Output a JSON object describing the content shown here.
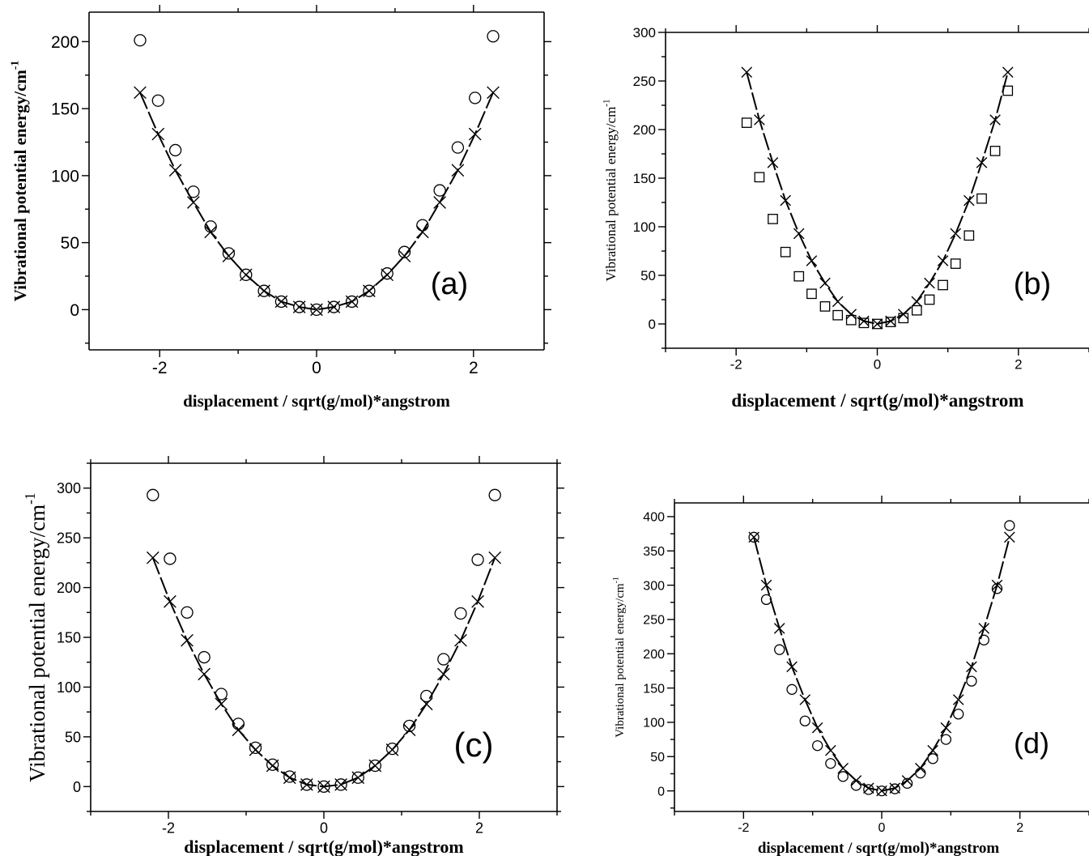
{
  "chart_data": [
    {
      "type": "scatter",
      "panel_label": "(a)",
      "xlabel": "displacement / sqrt(g/mol)*angstrom",
      "ylabel": "Vibrational potential energy/cm",
      "ylabel_sup": "-1",
      "xlim": [
        -2.9,
        2.9
      ],
      "ylim": [
        -30,
        222
      ],
      "xticks": [
        -2,
        0,
        2
      ],
      "yticks": [
        0,
        50,
        100,
        150,
        200
      ],
      "series": [
        {
          "marker": "circle",
          "x": [
            -2.25,
            -2.02,
            -1.8,
            -1.57,
            -1.35,
            -1.12,
            -0.9,
            -0.67,
            -0.45,
            -0.22,
            0,
            0.22,
            0.45,
            0.67,
            0.9,
            1.12,
            1.35,
            1.57,
            1.8,
            2.02,
            2.25
          ],
          "y": [
            201,
            156,
            119,
            88,
            62,
            42,
            26,
            14,
            6,
            2,
            0,
            2,
            6,
            14,
            27,
            43,
            63,
            89,
            121,
            158,
            204
          ]
        },
        {
          "marker": "cross",
          "line": true,
          "x": [
            -2.25,
            -2.02,
            -1.8,
            -1.57,
            -1.35,
            -1.12,
            -0.9,
            -0.67,
            -0.45,
            -0.22,
            0,
            0.22,
            0.45,
            0.67,
            0.9,
            1.12,
            1.35,
            1.57,
            1.8,
            2.02,
            2.25
          ],
          "y": [
            162,
            131,
            104,
            80,
            58,
            40,
            26,
            14,
            6,
            2,
            0,
            2,
            6,
            14,
            26,
            40,
            58,
            80,
            104,
            131,
            162
          ]
        }
      ]
    },
    {
      "type": "scatter",
      "panel_label": "(b)",
      "xlabel": "displacement / sqrt(g/mol)*angstrom",
      "ylabel": "Vibrational potential energy/cm",
      "ylabel_sup": "-1",
      "xlim": [
        -3,
        3
      ],
      "ylim": [
        -25,
        300
      ],
      "xticks": [
        -2,
        0,
        2
      ],
      "yticks": [
        0,
        50,
        100,
        150,
        200,
        250,
        300
      ],
      "series": [
        {
          "marker": "square",
          "x": [
            -1.85,
            -1.67,
            -1.48,
            -1.3,
            -1.11,
            -0.93,
            -0.74,
            -0.56,
            -0.37,
            -0.19,
            0,
            0.19,
            0.37,
            0.56,
            0.74,
            0.93,
            1.11,
            1.3,
            1.48,
            1.67,
            1.85
          ],
          "y": [
            207,
            151,
            108,
            74,
            49,
            31,
            18,
            9,
            4,
            1,
            0,
            2,
            6,
            14,
            25,
            40,
            62,
            91,
            129,
            178,
            240
          ]
        },
        {
          "marker": "cross",
          "line": true,
          "x": [
            -1.85,
            -1.67,
            -1.48,
            -1.3,
            -1.11,
            -0.93,
            -0.74,
            -0.56,
            -0.37,
            -0.19,
            0,
            0.19,
            0.37,
            0.56,
            0.74,
            0.93,
            1.11,
            1.3,
            1.48,
            1.67,
            1.85
          ],
          "y": [
            259,
            210,
            166,
            127,
            93,
            65,
            42,
            23,
            10,
            3,
            0,
            3,
            10,
            23,
            42,
            65,
            93,
            127,
            166,
            210,
            259
          ]
        }
      ]
    },
    {
      "type": "scatter",
      "panel_label": "(c)",
      "xlabel": "displacement / sqrt(g/mol)*angstrom",
      "ylabel": "Vibrational potential energy/cm",
      "ylabel_sup": "-1",
      "xlim": [
        -3,
        3
      ],
      "ylim": [
        -25,
        325
      ],
      "xticks": [
        -2,
        0,
        2
      ],
      "yticks": [
        0,
        50,
        100,
        150,
        200,
        250,
        300
      ],
      "series": [
        {
          "marker": "circle",
          "x": [
            -2.2,
            -1.98,
            -1.76,
            -1.54,
            -1.32,
            -1.1,
            -0.88,
            -0.66,
            -0.44,
            -0.22,
            0,
            0.22,
            0.44,
            0.66,
            0.88,
            1.1,
            1.32,
            1.54,
            1.76,
            1.98,
            2.2
          ],
          "y": [
            293,
            229,
            175,
            130,
            93,
            63,
            39,
            22,
            10,
            2,
            0,
            2,
            9,
            21,
            38,
            61,
            91,
            128,
            174,
            228,
            293
          ]
        },
        {
          "marker": "cross",
          "line": true,
          "x": [
            -2.2,
            -1.98,
            -1.76,
            -1.54,
            -1.32,
            -1.1,
            -0.88,
            -0.66,
            -0.44,
            -0.22,
            0,
            0.22,
            0.44,
            0.66,
            0.88,
            1.1,
            1.32,
            1.54,
            1.76,
            1.98,
            2.2
          ],
          "y": [
            230,
            186,
            147,
            113,
            83,
            57,
            37,
            21,
            9,
            2,
            0,
            2,
            9,
            21,
            37,
            57,
            83,
            113,
            147,
            186,
            230
          ]
        }
      ]
    },
    {
      "type": "scatter",
      "panel_label": "(d)",
      "xlabel": "displacement / sqrt(g/mol)*angstrom",
      "ylabel": "Vibrational potential energy/cm",
      "ylabel_sup": "-1",
      "xlim": [
        -3,
        3
      ],
      "ylim": [
        -30,
        420
      ],
      "xticks": [
        -2,
        0,
        2
      ],
      "yticks": [
        0,
        50,
        100,
        150,
        200,
        250,
        300,
        350,
        400
      ],
      "series": [
        {
          "marker": "circle",
          "x": [
            -1.85,
            -1.67,
            -1.48,
            -1.3,
            -1.11,
            -0.93,
            -0.74,
            -0.56,
            -0.37,
            -0.19,
            0,
            0.19,
            0.37,
            0.56,
            0.74,
            0.93,
            1.11,
            1.3,
            1.48,
            1.67,
            1.85
          ],
          "y": [
            370,
            279,
            206,
            148,
            102,
            66,
            40,
            21,
            8,
            2,
            0,
            3,
            11,
            26,
            47,
            75,
            112,
            160,
            220,
            295,
            387
          ]
        },
        {
          "marker": "cross",
          "line": true,
          "x": [
            -1.85,
            -1.67,
            -1.48,
            -1.3,
            -1.11,
            -0.93,
            -0.74,
            -0.56,
            -0.37,
            -0.19,
            0,
            0.19,
            0.37,
            0.56,
            0.74,
            0.93,
            1.11,
            1.3,
            1.48,
            1.67,
            1.85
          ],
          "y": [
            370,
            300,
            237,
            181,
            133,
            92,
            59,
            33,
            15,
            4,
            0,
            4,
            15,
            33,
            59,
            92,
            133,
            181,
            237,
            300,
            370
          ]
        }
      ]
    }
  ]
}
